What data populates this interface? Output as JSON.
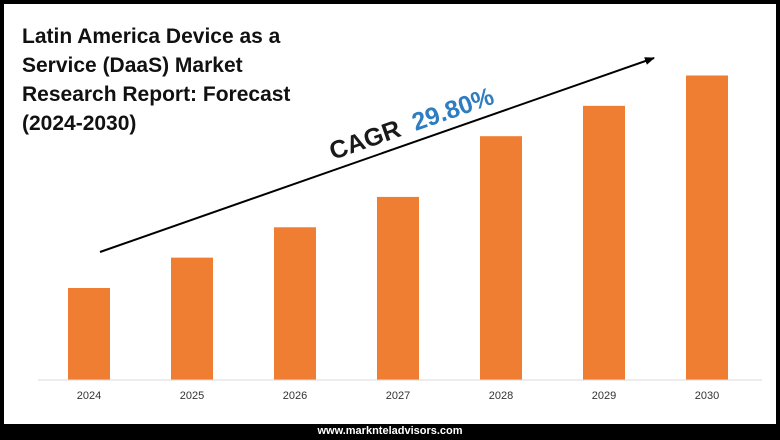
{
  "title_lines": [
    "Latin America Device as a",
    "Service (DaaS) Market",
    "Research Report: Forecast",
    "(2024-2030)"
  ],
  "cagr": {
    "label": "CAGR",
    "value": "29.80%",
    "label_color": "#1a1a1a",
    "value_color": "#2e7cc1"
  },
  "footer": {
    "url": "www.marknteladvisors.com"
  },
  "colors": {
    "bar": "#ef7d32",
    "axis": "#d9d9d9",
    "arrow": "#000000"
  },
  "chart_data": {
    "type": "bar",
    "categories": [
      "2024",
      "2025",
      "2026",
      "2027",
      "2028",
      "2029",
      "2030"
    ],
    "values": [
      1.0,
      1.33,
      1.66,
      1.99,
      2.65,
      2.98,
      3.31
    ],
    "ylim": [
      0,
      3.5
    ],
    "grid": false,
    "legend": "none",
    "title": "Latin America Device as a Service (DaaS) Market Research Report: Forecast (2024-2030)",
    "xlabel": "",
    "ylabel": ""
  }
}
